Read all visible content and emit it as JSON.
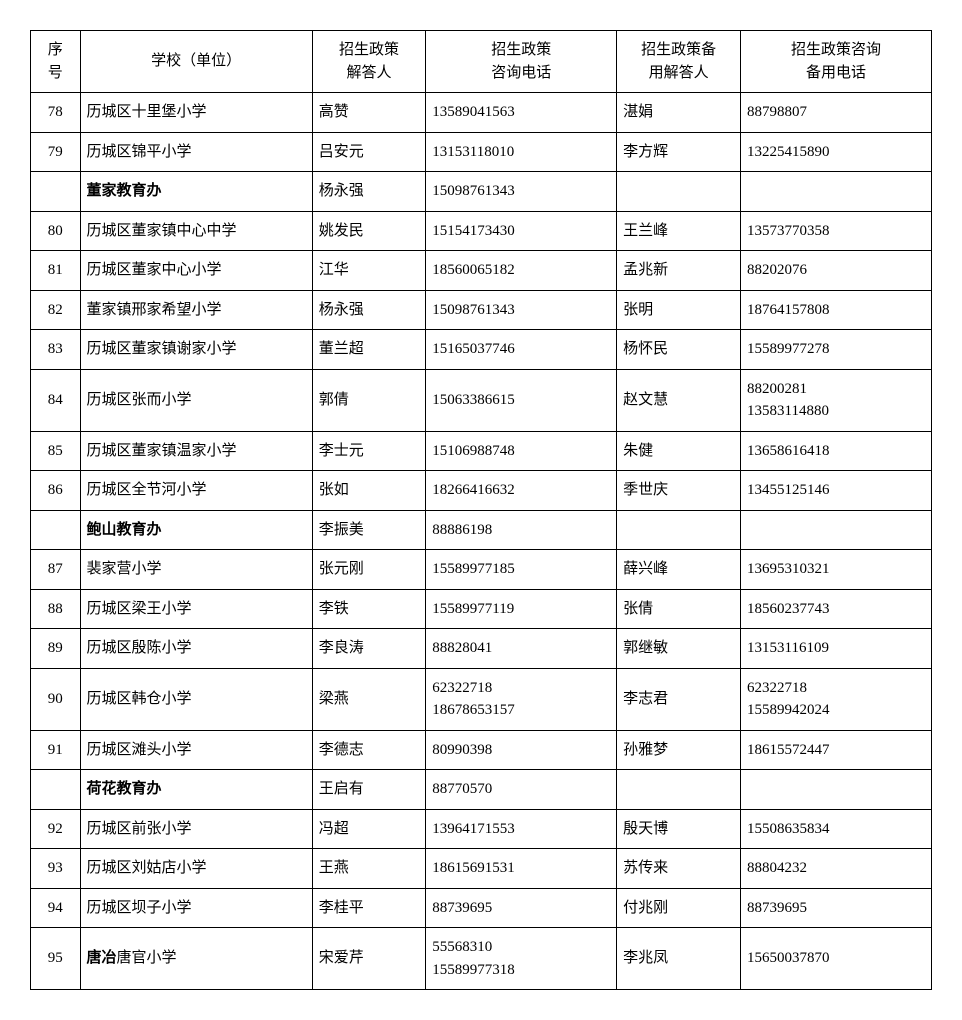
{
  "table": {
    "columns": [
      {
        "key": "seq",
        "label": "序\n号",
        "class": "col-seq"
      },
      {
        "key": "school",
        "label": "学校（单位）",
        "class": "col-school"
      },
      {
        "key": "person1",
        "label": "招生政策\n解答人",
        "class": "col-person1"
      },
      {
        "key": "phone1",
        "label": "招生政策\n咨询电话",
        "class": "col-phone1"
      },
      {
        "key": "person2",
        "label": "招生政策备\n用解答人",
        "class": "col-person2"
      },
      {
        "key": "phone2",
        "label": "招生政策咨询\n备用电话",
        "class": "col-phone2"
      }
    ],
    "rows": [
      {
        "seq": "78",
        "school": "历城区十里堡小学",
        "person1": "高赞",
        "phone1": "13589041563",
        "person2": "湛娟",
        "phone2": "88798807"
      },
      {
        "seq": "79",
        "school": "历城区锦平小学",
        "person1": "吕安元",
        "phone1": "13153118010",
        "person2": "李方辉",
        "phone2": "13225415890"
      },
      {
        "seq": "",
        "school": "董家教育办",
        "school_bold": true,
        "person1": "杨永强",
        "phone1": "15098761343",
        "person2": "",
        "phone2": ""
      },
      {
        "seq": "80",
        "school": "历城区董家镇中心中学",
        "person1": "姚发民",
        "phone1": "15154173430",
        "person2": "王兰峰",
        "phone2": "13573770358"
      },
      {
        "seq": "81",
        "school": "历城区董家中心小学",
        "person1": "江华",
        "phone1": "18560065182",
        "person2": "孟兆新",
        "phone2": "88202076"
      },
      {
        "seq": "82",
        "school": "董家镇邢家希望小学",
        "person1": "杨永强",
        "phone1": "15098761343",
        "person2": "张明",
        "phone2": "18764157808"
      },
      {
        "seq": "83",
        "school": "历城区董家镇谢家小学",
        "person1": "董兰超",
        "phone1": "15165037746",
        "person2": "杨怀民",
        "phone2": "15589977278"
      },
      {
        "seq": "84",
        "school": "历城区张而小学",
        "person1": "郭倩",
        "phone1": "15063386615",
        "person2": "赵文慧",
        "phone2": "88200281\n13583114880"
      },
      {
        "seq": "85",
        "school": "历城区董家镇温家小学",
        "person1": "李士元",
        "phone1": "15106988748",
        "person2": "朱健",
        "phone2": "13658616418"
      },
      {
        "seq": "86",
        "school": "历城区全节河小学",
        "person1": "张如",
        "phone1": "18266416632",
        "person2": "季世庆",
        "phone2": "13455125146"
      },
      {
        "seq": "",
        "school": "鲍山教育办",
        "school_bold": true,
        "person1": "李振美",
        "phone1": "88886198",
        "person2": "",
        "phone2": ""
      },
      {
        "seq": "87",
        "school": "裴家营小学",
        "person1": "张元刚",
        "phone1": "15589977185",
        "person2": "薛兴峰",
        "phone2": "13695310321"
      },
      {
        "seq": "88",
        "school": "历城区梁王小学",
        "person1": "李铁",
        "phone1": "15589977119",
        "person2": "张倩",
        "phone2": "18560237743"
      },
      {
        "seq": "89",
        "school": "历城区殷陈小学",
        "person1": "李良涛",
        "phone1": "88828041",
        "person2": "郭继敏",
        "phone2": "13153116109"
      },
      {
        "seq": "90",
        "school": "历城区韩仓小学",
        "person1": "梁燕",
        "phone1": "62322718\n18678653157",
        "person2": "李志君",
        "phone2": "62322718\n15589942024"
      },
      {
        "seq": "91",
        "school": "历城区滩头小学",
        "person1": "李德志",
        "phone1": "80990398",
        "person2": "孙雅梦",
        "phone2": "18615572447"
      },
      {
        "seq": "",
        "school": "荷花教育办",
        "school_bold": true,
        "person1": "王启有",
        "phone1": "88770570",
        "person2": "",
        "phone2": ""
      },
      {
        "seq": "92",
        "school": "历城区前张小学",
        "person1": "冯超",
        "phone1": "13964171553",
        "person2": "殷天博",
        "phone2": "15508635834"
      },
      {
        "seq": "93",
        "school": "历城区刘姑店小学",
        "person1": "王燕",
        "phone1": "18615691531",
        "person2": "苏传来",
        "phone2": "88804232"
      },
      {
        "seq": "94",
        "school": "历城区坝子小学",
        "person1": "李桂平",
        "phone1": "88739695",
        "person2": "付兆刚",
        "phone2": "88739695"
      },
      {
        "seq": "95",
        "school_prefix_bold": "唐冶",
        "school_suffix": "唐官小学",
        "person1": "宋爱芹",
        "phone1": "55568310\n15589977318",
        "person2": "李兆凤",
        "phone2": "15650037870"
      }
    ]
  }
}
